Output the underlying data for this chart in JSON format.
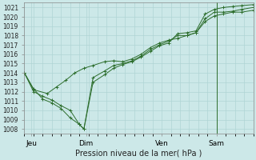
{
  "xlabel": "Pression niveau de la mer( hPa )",
  "bg_color": "#cce8e8",
  "grid_color": "#b0d4d4",
  "line_color": "#2d6e2d",
  "ylim": [
    1007.5,
    1021.5
  ],
  "yticks": [
    1008,
    1009,
    1010,
    1011,
    1012,
    1013,
    1014,
    1015,
    1016,
    1017,
    1018,
    1019,
    1020,
    1021
  ],
  "xlim": [
    0,
    100
  ],
  "xtick_positions": [
    3,
    27,
    60,
    84
  ],
  "xtick_labels": [
    "Jeu",
    "Dim",
    "Ven",
    "Sam"
  ],
  "vline_x": 84,
  "series": [
    [
      [
        0,
        1014
      ],
      [
        4,
        1012.2
      ],
      [
        10,
        1011.8
      ],
      [
        14,
        1012.5
      ],
      [
        18,
        1013.2
      ],
      [
        22,
        1014.0
      ],
      [
        26,
        1014.5
      ],
      [
        30,
        1014.8
      ],
      [
        35,
        1015.2
      ],
      [
        39,
        1015.3
      ],
      [
        43,
        1015.2
      ],
      [
        47,
        1015.5
      ],
      [
        51,
        1016.0
      ],
      [
        55,
        1016.7
      ],
      [
        59,
        1017.2
      ],
      [
        63,
        1017.5
      ],
      [
        67,
        1017.7
      ],
      [
        71,
        1018.0
      ],
      [
        75,
        1018.3
      ],
      [
        79,
        1019.5
      ],
      [
        83,
        1020.1
      ],
      [
        87,
        1020.3
      ],
      [
        91,
        1020.5
      ],
      [
        95,
        1020.5
      ],
      [
        100,
        1020.7
      ]
    ],
    [
      [
        0,
        1014
      ],
      [
        4,
        1012.0
      ],
      [
        8,
        1011.5
      ],
      [
        12,
        1011.1
      ],
      [
        16,
        1010.5
      ],
      [
        20,
        1010.0
      ],
      [
        24,
        1008.5
      ],
      [
        26,
        1008.0
      ],
      [
        30,
        1013.5
      ],
      [
        35,
        1014.2
      ],
      [
        39,
        1014.8
      ],
      [
        43,
        1015.0
      ],
      [
        47,
        1015.3
      ],
      [
        51,
        1015.8
      ],
      [
        55,
        1016.5
      ],
      [
        59,
        1017.0
      ],
      [
        63,
        1017.4
      ],
      [
        67,
        1018.0
      ],
      [
        71,
        1018.0
      ],
      [
        75,
        1018.3
      ],
      [
        79,
        1019.8
      ],
      [
        83,
        1020.5
      ],
      [
        87,
        1020.5
      ],
      [
        91,
        1020.6
      ],
      [
        95,
        1020.8
      ],
      [
        100,
        1021.0
      ]
    ],
    [
      [
        0,
        1014
      ],
      [
        4,
        1012.3
      ],
      [
        8,
        1011.2
      ],
      [
        12,
        1010.8
      ],
      [
        16,
        1010.2
      ],
      [
        20,
        1009.2
      ],
      [
        24,
        1008.5
      ],
      [
        26,
        1008.0
      ],
      [
        30,
        1013.0
      ],
      [
        35,
        1013.8
      ],
      [
        39,
        1014.5
      ],
      [
        43,
        1014.9
      ],
      [
        47,
        1015.2
      ],
      [
        51,
        1015.7
      ],
      [
        55,
        1016.3
      ],
      [
        59,
        1016.9
      ],
      [
        63,
        1017.2
      ],
      [
        67,
        1018.2
      ],
      [
        71,
        1018.3
      ],
      [
        75,
        1018.5
      ],
      [
        79,
        1020.3
      ],
      [
        83,
        1020.8
      ],
      [
        87,
        1021.0
      ],
      [
        91,
        1021.1
      ],
      [
        95,
        1021.2
      ],
      [
        100,
        1021.3
      ]
    ]
  ]
}
